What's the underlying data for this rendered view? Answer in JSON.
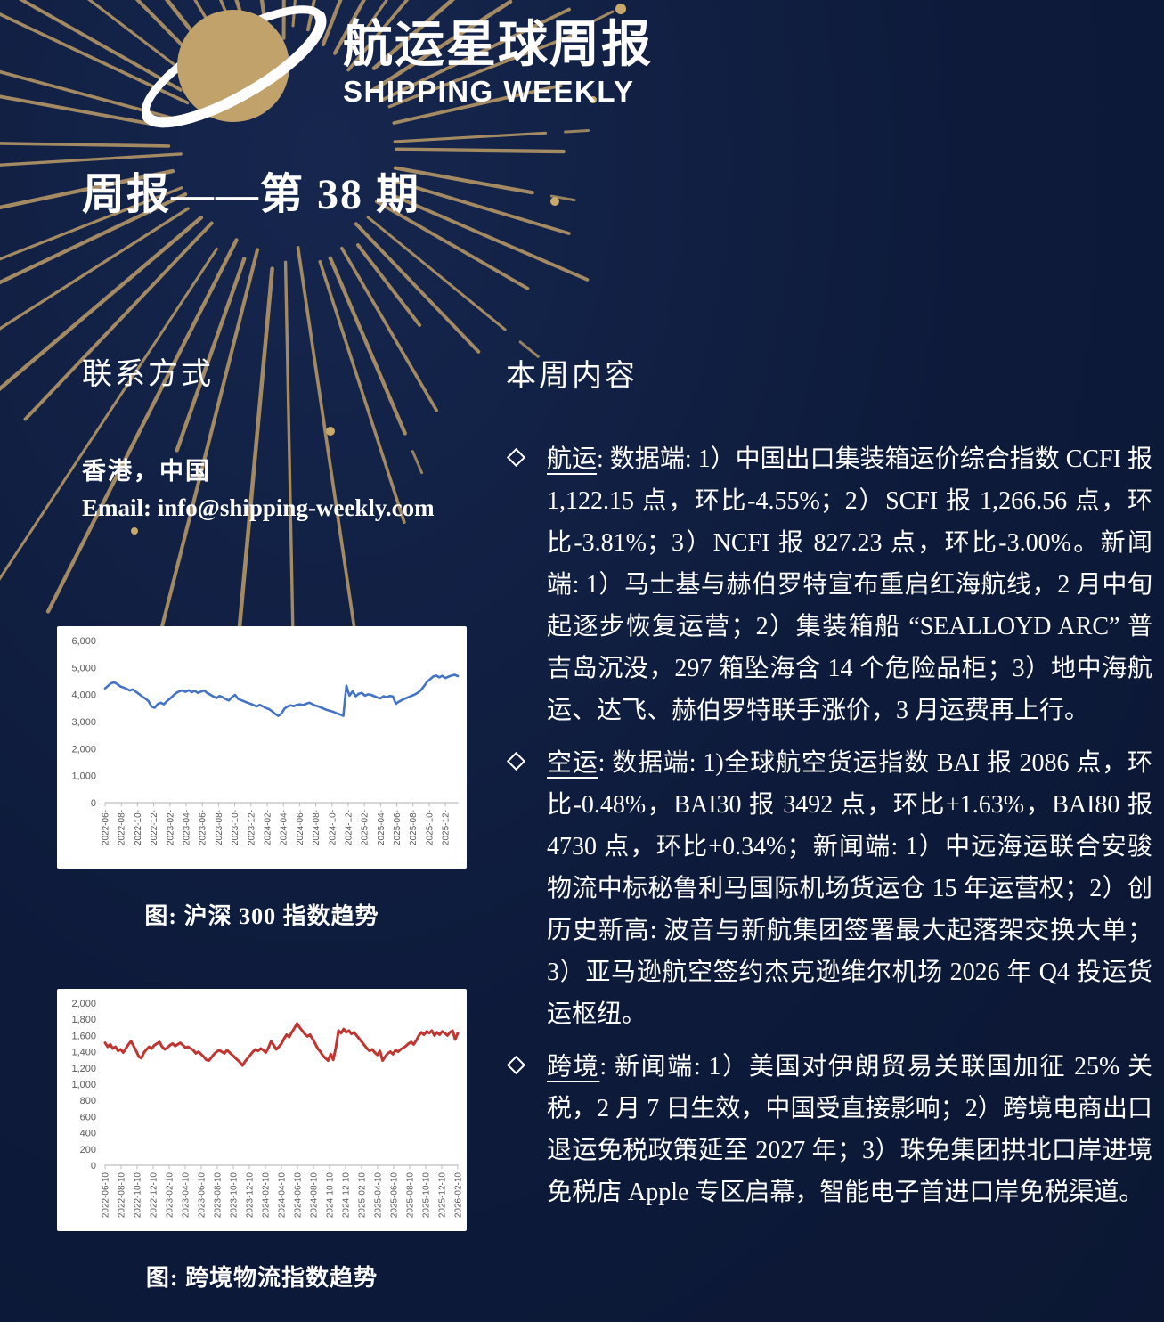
{
  "header": {
    "logo_title_cn": "航运星球周报",
    "logo_title_en": "SHIPPING WEEKLY",
    "issue_line": "周报——第 38 期"
  },
  "contact": {
    "heading": "联系方式",
    "location": "香港，中国",
    "email_line": "Email: info@shipping-weekly.com"
  },
  "weekly": {
    "heading": "本周内容",
    "bullets": [
      {
        "tag": "航运",
        "text": ": 数据端: 1）中国出口集装箱运价综合指数 CCFI 报 1,122.15 点，环比-4.55%；2）SCFI 报 1,266.56 点，环比-3.81%；3）NCFI 报 827.23 点，环比-3.00%。新闻端: 1）马士基与赫伯罗特宣布重启红海航线，2 月中旬起逐步恢复运营；2）集装箱船 “SEALLOYD ARC” 普吉岛沉没，297 箱坠海含 14 个危险品柜；3）地中海航运、达飞、赫伯罗特联手涨价，3 月运费再上行。"
      },
      {
        "tag": "空运",
        "text": ": 数据端: 1)全球航空货运指数 BAI 报 2086 点，环比-0.48%，BAI30 报 3492 点，环比+1.63%，BAI80 报 4730 点，环比+0.34%；新闻端: 1）中远海运联合安骏物流中标秘鲁利马国际机场货运仓 15 年运营权；2）创历史新高: 波音与新航集团签署最大起落架交换大单；3）亚马逊航空签约杰克逊维尔机场 2026 年 Q4 投运货运枢纽。"
      },
      {
        "tag": "跨境",
        "text": ": 新闻端: 1）美国对伊朗贸易关联国加征 25% 关税，2 月 7 日生效，中国受直接影响；2）跨境电商出口退运免税政策延至 2027 年；3）珠免集团拱北口岸进境免税店 Apple 专区启幕，智能电子首进口岸免税渠道。"
      }
    ]
  },
  "figures": [
    {
      "caption": "图: 沪深 300 指数趋势"
    },
    {
      "caption": "图: 跨境物流指数趋势"
    }
  ],
  "colors": {
    "background": "#0d1a3a",
    "gold_accent": "#b09465",
    "planet_gold": "#c2a26b",
    "csi300_line": "#4472c4",
    "logistics_line": "#c13530",
    "axis_text": "#595959",
    "axis_line": "#bfbfbf"
  },
  "chart_data": [
    {
      "type": "line",
      "title": "沪深 300 指数趋势",
      "legend": [],
      "grid": false,
      "color": "#4472c4",
      "line_width": 2.6,
      "ylim": [
        0,
        6000
      ],
      "ystep": 1000,
      "label_span": 0.965,
      "x_labels": [
        "2022-06-",
        "2022-08-",
        "2022-10-",
        "2022-12-",
        "2023-02-",
        "2023-04-",
        "2023-06-",
        "2023-08-",
        "2023-10-",
        "2023-12-",
        "2024-02-",
        "2024-04-",
        "2024-06-",
        "2024-08-",
        "2024-10-",
        "2024-12-",
        "2025-02-",
        "2025-04-",
        "2025-06-",
        "2025-08-",
        "2025-10-",
        "2025-12-"
      ],
      "values": [
        4230,
        4330,
        4420,
        4450,
        4380,
        4300,
        4260,
        4210,
        4150,
        4190,
        4100,
        4020,
        3930,
        3850,
        3760,
        3560,
        3510,
        3650,
        3700,
        3640,
        3760,
        3850,
        3960,
        4060,
        4120,
        4150,
        4100,
        4160,
        4090,
        4140,
        4060,
        4110,
        4150,
        4060,
        4000,
        3930,
        3870,
        3950,
        3900,
        3830,
        3780,
        3900,
        3990,
        3840,
        3790,
        3750,
        3700,
        3660,
        3610,
        3560,
        3620,
        3560,
        3500,
        3460,
        3380,
        3280,
        3210,
        3300,
        3480,
        3560,
        3600,
        3570,
        3620,
        3640,
        3610,
        3660,
        3700,
        3650,
        3590,
        3560,
        3510,
        3460,
        3420,
        3390,
        3350,
        3300,
        3260,
        3210,
        4330,
        3960,
        4120,
        3940,
        4030,
        4060,
        3960,
        4010,
        3990,
        3940,
        3890,
        3860,
        3940,
        3900,
        3950,
        3930,
        3660,
        3740,
        3800,
        3850,
        3900,
        3950,
        4000,
        4060,
        4150,
        4300,
        4460,
        4560,
        4660,
        4700,
        4640,
        4690,
        4610,
        4660,
        4700,
        4730,
        4680
      ]
    },
    {
      "type": "line",
      "title": "跨境物流指数趋势",
      "legend": [],
      "grid": false,
      "color": "#c13530",
      "line_width": 3,
      "ylim": [
        0,
        2000
      ],
      "ystep": 200,
      "label_span": 1,
      "x_labels": [
        "2022-06-10",
        "2022-08-10",
        "2022-10-10",
        "2022-12-10",
        "2023-02-10",
        "2023-04-10",
        "2023-06-10",
        "2023-08-10",
        "2023-10-10",
        "2023-12-10",
        "2024-02-10",
        "2024-04-10",
        "2024-06-10",
        "2024-08-10",
        "2024-10-10",
        "2024-12-10",
        "2025-02-10",
        "2025-04-10",
        "2025-06-10",
        "2025-08-10",
        "2025-10-10",
        "2025-12-10",
        "2026-02-10"
      ],
      "values": [
        1510,
        1460,
        1490,
        1440,
        1460,
        1410,
        1430,
        1390,
        1440,
        1490,
        1530,
        1470,
        1410,
        1340,
        1320,
        1390,
        1430,
        1460,
        1440,
        1480,
        1500,
        1520,
        1460,
        1430,
        1450,
        1480,
        1500,
        1470,
        1490,
        1510,
        1480,
        1450,
        1460,
        1440,
        1420,
        1380,
        1400,
        1370,
        1340,
        1300,
        1290,
        1330,
        1370,
        1400,
        1420,
        1400,
        1380,
        1420,
        1390,
        1360,
        1330,
        1300,
        1270,
        1230,
        1280,
        1320,
        1360,
        1400,
        1430,
        1410,
        1440,
        1420,
        1390,
        1450,
        1530,
        1480,
        1430,
        1460,
        1500,
        1560,
        1610,
        1580,
        1640,
        1690,
        1750,
        1700,
        1660,
        1620,
        1590,
        1610,
        1560,
        1500,
        1440,
        1400,
        1350,
        1320,
        1290,
        1370,
        1300,
        1450,
        1660,
        1630,
        1680,
        1640,
        1660,
        1620,
        1640,
        1600,
        1560,
        1520,
        1480,
        1440,
        1410,
        1430,
        1390,
        1360,
        1410,
        1290,
        1340,
        1380,
        1400,
        1370,
        1420,
        1400,
        1430,
        1450,
        1470,
        1500,
        1520,
        1490,
        1540,
        1600,
        1640,
        1610,
        1650,
        1630,
        1660,
        1600,
        1640,
        1610,
        1650,
        1630,
        1600,
        1640,
        1660,
        1550,
        1630
      ]
    }
  ]
}
